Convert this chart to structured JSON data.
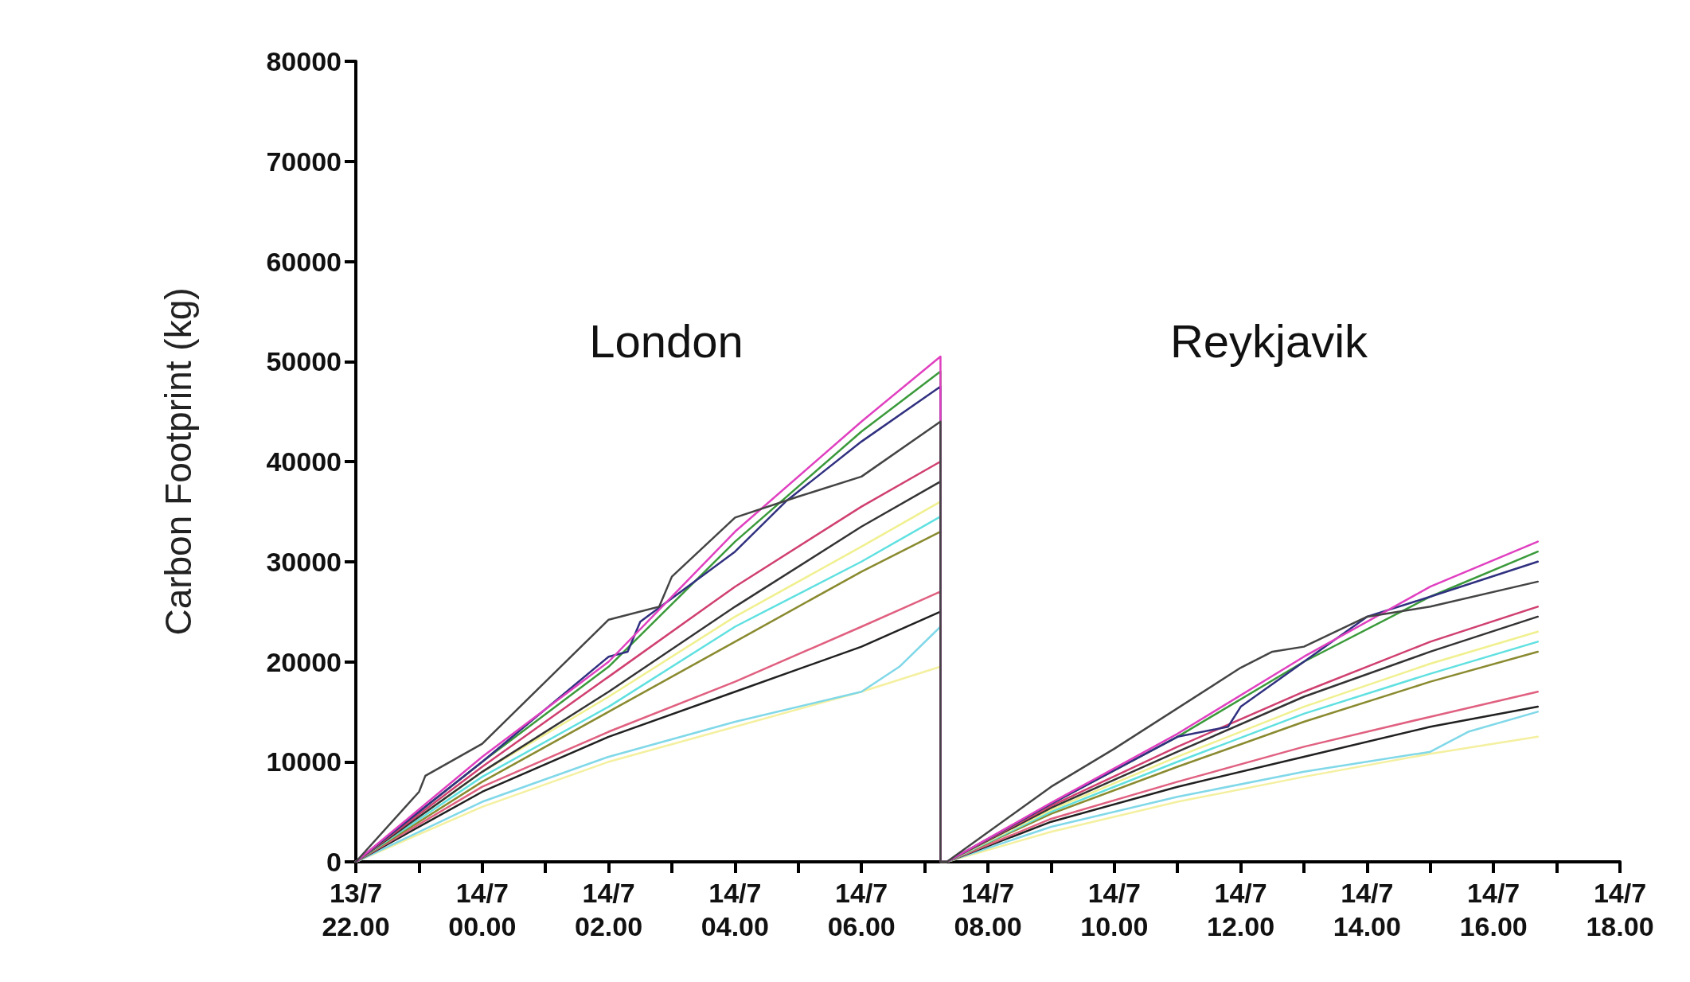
{
  "chart_data": {
    "type": "line",
    "ylabel": "Carbon Footprint (kg)",
    "xlim": [
      "--07-13T22:00",
      "--07-14T18:00"
    ],
    "ylim": [
      0,
      80000
    ],
    "yticks": [
      0,
      10000,
      20000,
      30000,
      40000,
      50000,
      60000,
      70000,
      80000
    ],
    "xticks": [
      {
        "value": "--07-13T22:00",
        "label": "13/7\n22.00"
      },
      {
        "value": "--07-13T23:00",
        "label": null
      },
      {
        "value": "--07-14T00:00",
        "label": "14/7\n00.00"
      },
      {
        "value": "--07-14T01:00",
        "label": null
      },
      {
        "value": "--07-14T02:00",
        "label": "14/7\n02.00"
      },
      {
        "value": "--07-14T03:00",
        "label": null
      },
      {
        "value": "--07-14T04:00",
        "label": "14/7\n04.00"
      },
      {
        "value": "--07-14T05:00",
        "label": null
      },
      {
        "value": "--07-14T06:00",
        "label": "14/7\n06.00"
      },
      {
        "value": "--07-14T07:00",
        "label": null
      },
      {
        "value": "--07-14T08:00",
        "label": "14/7\n08.00"
      },
      {
        "value": "--07-14T09:00",
        "label": null
      },
      {
        "value": "--07-14T10:00",
        "label": "14/7\n10.00"
      },
      {
        "value": "--07-14T11:00",
        "label": null
      },
      {
        "value": "--07-14T12:00",
        "label": "14/7\n12.00"
      },
      {
        "value": "--07-14T13:00",
        "label": null
      },
      {
        "value": "--07-14T14:00",
        "label": "14/7\n14.00"
      },
      {
        "value": "--07-14T15:00",
        "label": null
      },
      {
        "value": "--07-14T16:00",
        "label": "14/7\n16.00"
      },
      {
        "value": "--07-14T17:00",
        "label": null
      },
      {
        "value": "--07-14T18:00",
        "label": "14/7\n18.00"
      }
    ],
    "grid": false,
    "marker": "none",
    "line_style": "solid",
    "annotations": [
      "London",
      "Reykjavik"
    ],
    "x": [
      "--07-13T22:00",
      "--07-14T00:00",
      "--07-14T02:00",
      "--07-14T04:00",
      "--07-14T06:00",
      "--07-14T07:15",
      "--07-14T07:15",
      "--07-14T07:21",
      "--07-14T09:00",
      "--07-14T11:00",
      "--07-14T13:00",
      "--07-14T15:00",
      "--07-14T16:42"
    ],
    "series": [
      {
        "color": "#f4f0a0",
        "values": [
          0,
          5500,
          10000,
          13500,
          17000,
          19500,
          0,
          0,
          3000,
          6000,
          8500,
          10800,
          12500
        ]
      },
      {
        "color": "#80d8e8",
        "x": [
          "--07-13T22:00",
          "--07-14T00:00",
          "--07-14T02:00",
          "--07-14T04:00",
          "--07-14T06:00",
          "--07-14T06:36",
          "--07-14T07:15",
          "--07-14T07:15",
          "--07-14T07:21",
          "--07-14T09:00",
          "--07-14T11:00",
          "--07-14T13:00",
          "--07-14T15:00",
          "--07-14T15:36",
          "--07-14T16:42"
        ],
        "values": [
          0,
          6000,
          10500,
          14000,
          17000,
          19500,
          23500,
          0,
          0,
          3500,
          6500,
          9000,
          11000,
          13000,
          15000
        ]
      },
      {
        "color": "#202020",
        "values": [
          0,
          7000,
          12500,
          17000,
          21500,
          25000,
          0,
          0,
          4000,
          7500,
          10500,
          13500,
          15500
        ]
      },
      {
        "color": "#e06080",
        "values": [
          0,
          7500,
          13000,
          18000,
          23500,
          27000,
          0,
          0,
          4300,
          8000,
          11500,
          14500,
          17000
        ]
      },
      {
        "color": "#8a8a30",
        "values": [
          0,
          8000,
          15000,
          22000,
          29000,
          33000,
          0,
          0,
          4800,
          9500,
          14000,
          18000,
          21000
        ]
      },
      {
        "color": "#60e0e0",
        "values": [
          0,
          8500,
          15500,
          23500,
          30000,
          34500,
          0,
          0,
          5000,
          10000,
          14800,
          18800,
          22000
        ]
      },
      {
        "color": "#f0f090",
        "values": [
          0,
          9000,
          16500,
          24500,
          31500,
          36000,
          0,
          0,
          5200,
          10500,
          15500,
          19800,
          23000
        ]
      },
      {
        "color": "#333333",
        "values": [
          0,
          9000,
          17000,
          25500,
          33500,
          38000,
          0,
          0,
          5400,
          11000,
          16500,
          21000,
          24500
        ]
      },
      {
        "color": "#d04070",
        "values": [
          0,
          9500,
          18500,
          27500,
          35500,
          40000,
          0,
          0,
          5600,
          11500,
          17000,
          22000,
          25500
        ]
      },
      {
        "color": "#3a9a3a",
        "values": [
          0,
          10000,
          19500,
          32000,
          43000,
          49000,
          0,
          0,
          5800,
          12500,
          20000,
          26500,
          31000
        ]
      },
      {
        "color": "#303080",
        "x": [
          "--07-13T22:00",
          "--07-14T00:00",
          "--07-14T02:00",
          "--07-14T02:18",
          "--07-14T02:30",
          "--07-14T04:00",
          "--07-14T04:48",
          "--07-14T06:00",
          "--07-14T07:15",
          "--07-14T07:15",
          "--07-14T07:21",
          "--07-14T09:00",
          "--07-14T11:00",
          "--07-14T11:48",
          "--07-14T12:00",
          "--07-14T13:00",
          "--07-14T14:00",
          "--07-14T15:00",
          "--07-14T16:42"
        ],
        "values": [
          0,
          10000,
          20500,
          21000,
          24000,
          31000,
          36000,
          42000,
          47500,
          0,
          0,
          5800,
          12500,
          13500,
          15500,
          20000,
          24500,
          26500,
          30000
        ]
      },
      {
        "color": "#e040c0",
        "values": [
          0,
          10500,
          20000,
          33000,
          44000,
          50500,
          0,
          0,
          5900,
          12800,
          20500,
          27500,
          32000
        ]
      },
      {
        "color": "#444444",
        "x": [
          "--07-13T22:00",
          "--07-13T23:00",
          "--07-13T23:06",
          "--07-14T00:00",
          "--07-14T02:00",
          "--07-14T02:48",
          "--07-14T03:00",
          "--07-14T04:00",
          "--07-14T05:00",
          "--07-14T06:00",
          "--07-14T07:15",
          "--07-14T07:15",
          "--07-14T07:21",
          "--07-14T09:00",
          "--07-14T10:00",
          "--07-14T12:00",
          "--07-14T12:30",
          "--07-14T13:00",
          "--07-14T14:00",
          "--07-14T15:00",
          "--07-14T16:42"
        ],
        "values": [
          0,
          7000,
          8600,
          11800,
          24200,
          25500,
          28500,
          34400,
          36500,
          38500,
          44000,
          0,
          0,
          7500,
          11300,
          19400,
          21000,
          21500,
          24500,
          25500,
          28000
        ]
      }
    ]
  }
}
